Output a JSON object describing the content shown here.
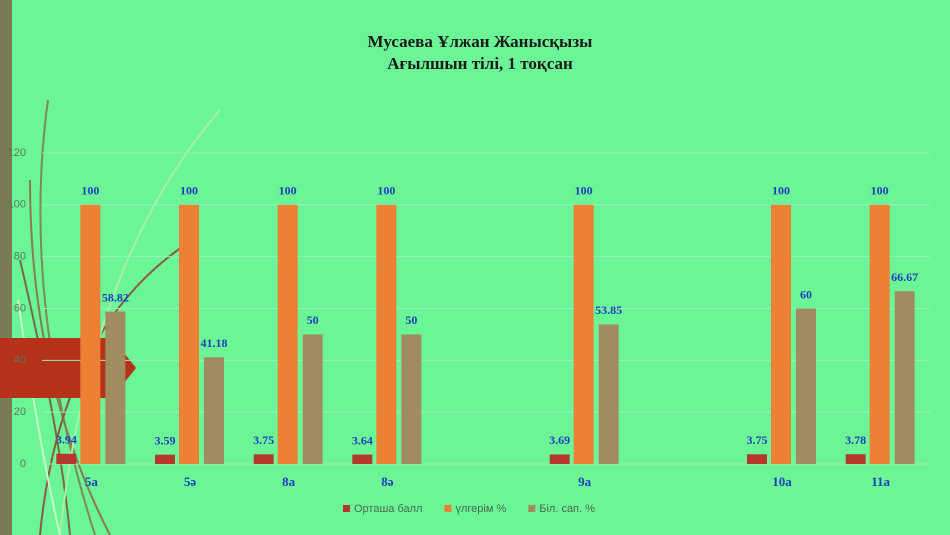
{
  "chart_data": {
    "type": "bar",
    "title": "Мусаева Ұлжан Жанысқызы",
    "subtitle": "Ағылшын тілі, 1 тоқсан",
    "categories": [
      "5а",
      "5ә",
      "8а",
      "8ә",
      null,
      "9а",
      null,
      "10а",
      "11а"
    ],
    "series": [
      {
        "name": "Орташа балл",
        "color": "#b5362a",
        "values": [
          3.94,
          3.59,
          3.75,
          3.64,
          null,
          3.69,
          null,
          3.75,
          3.78
        ]
      },
      {
        "name": "үлгерім %",
        "color": "#ec8136",
        "values": [
          100,
          100,
          100,
          100,
          null,
          100,
          null,
          100,
          100
        ]
      },
      {
        "name": "Біл. сап. %",
        "color": "#a08c60",
        "values": [
          58.82,
          41.18,
          50,
          50,
          null,
          53.85,
          null,
          60,
          66.67
        ]
      }
    ],
    "ylim": [
      0,
      120
    ],
    "yticks": [
      0,
      20,
      40,
      60,
      80,
      100,
      120
    ],
    "grid": true
  }
}
